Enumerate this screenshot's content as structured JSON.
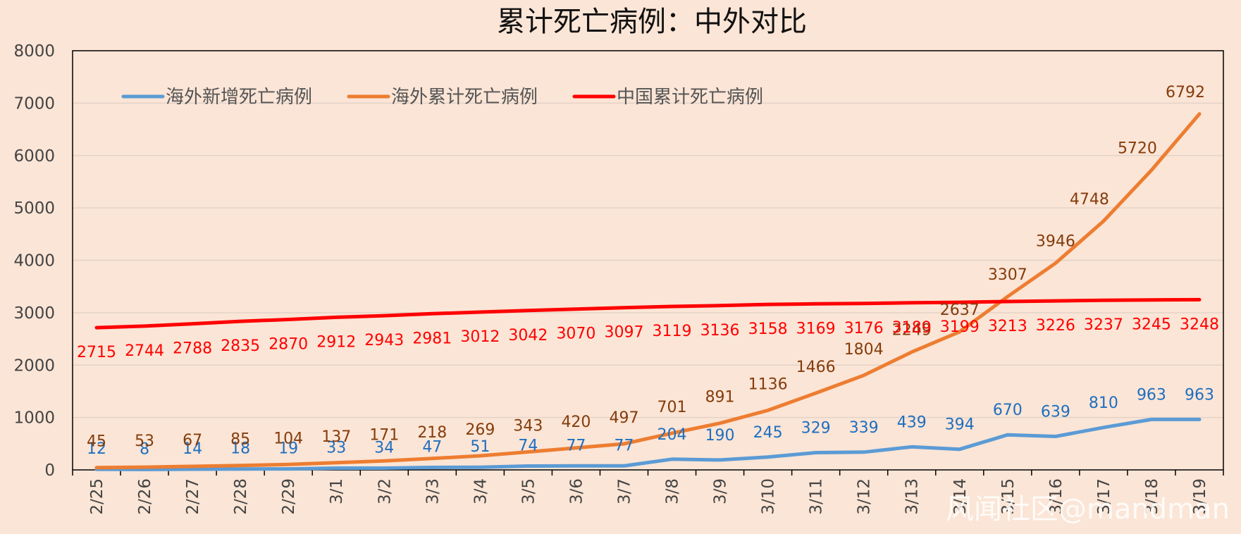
{
  "chart_data": {
    "type": "line",
    "title": "累计死亡病例：中外对比",
    "xlabel": "",
    "ylabel": "",
    "ylim": [
      0,
      8000
    ],
    "yticks": [
      0,
      1000,
      2000,
      3000,
      4000,
      5000,
      6000,
      7000,
      8000
    ],
    "grid": true,
    "legend_position": "top-left",
    "categories": [
      "2/25",
      "2/26",
      "2/27",
      "2/28",
      "2/29",
      "3/1",
      "3/2",
      "3/3",
      "3/4",
      "3/5",
      "3/6",
      "3/7",
      "3/8",
      "3/9",
      "3/10",
      "3/11",
      "3/12",
      "3/13",
      "3/14",
      "3/15",
      "3/16",
      "3/17",
      "3/18",
      "3/19"
    ],
    "series": [
      {
        "name": "海外新增死亡病例",
        "color": "#5b9bd5",
        "label_color": "#1f6fc0",
        "values": [
          12,
          8,
          14,
          18,
          19,
          33,
          34,
          47,
          51,
          74,
          77,
          77,
          204,
          190,
          245,
          329,
          339,
          439,
          394,
          670,
          639,
          810,
          963,
          963
        ]
      },
      {
        "name": "海外累计死亡病例",
        "color": "#ed7d31",
        "label_color": "#843c0c",
        "values": [
          45,
          53,
          67,
          85,
          104,
          137,
          171,
          218,
          269,
          343,
          420,
          497,
          701,
          891,
          1136,
          1466,
          1804,
          2249,
          2637,
          3307,
          3946,
          4748,
          5720,
          6792
        ]
      },
      {
        "name": "中国累计死亡病例",
        "color": "#ff0000",
        "label_color": "#ff0000",
        "values": [
          2715,
          2744,
          2788,
          2835,
          2870,
          2912,
          2943,
          2981,
          3012,
          3042,
          3070,
          3097,
          3119,
          3136,
          3158,
          3169,
          3176,
          3189,
          3199,
          3213,
          3226,
          3237,
          3245,
          3248
        ]
      }
    ]
  },
  "watermark": "风闻社区@mandman"
}
